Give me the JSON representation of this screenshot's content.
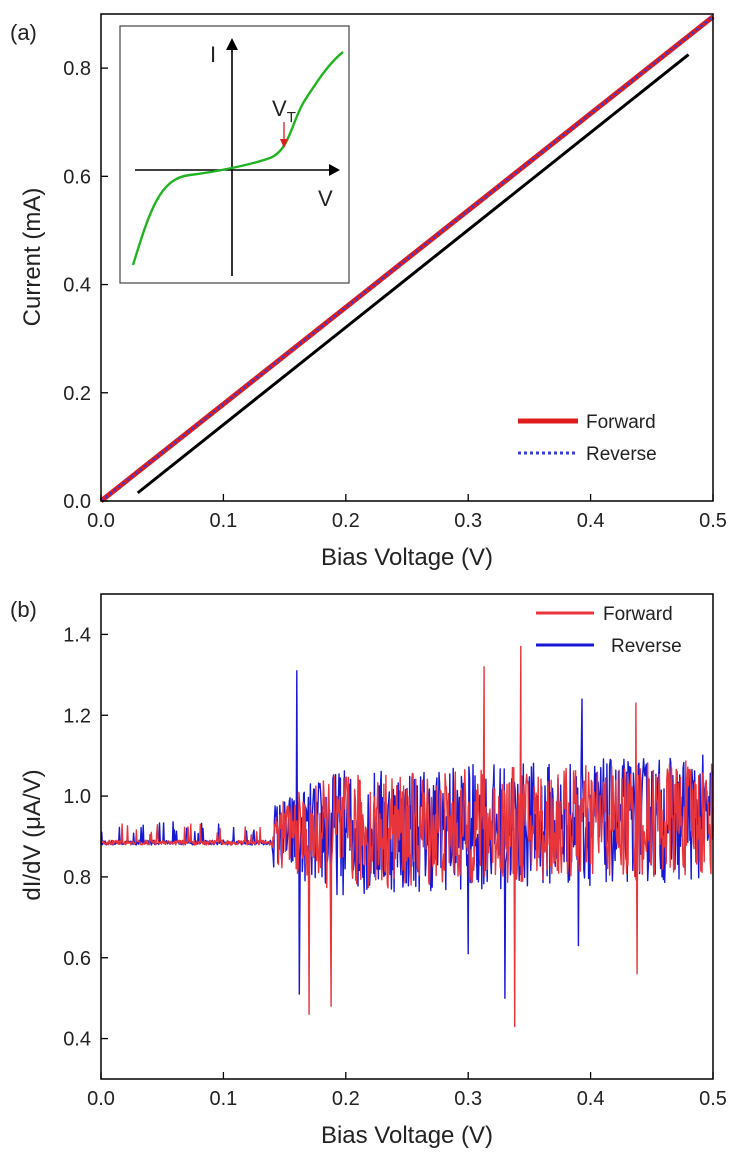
{
  "chart_data": [
    {
      "panel_label": "(a)",
      "type": "line",
      "xlabel": "Bias Voltage (V)",
      "ylabel": "Current (mA)",
      "xlim": [
        0,
        0.5
      ],
      "ylim": [
        0,
        0.9
      ],
      "xticks": [
        0.0,
        0.1,
        0.2,
        0.3,
        0.4,
        0.5
      ],
      "xtick_labels": [
        "0.0",
        "0.1",
        "0.2",
        "0.3",
        "0.4",
        "0.5"
      ],
      "yticks": [
        0.0,
        0.2,
        0.4,
        0.6,
        0.8
      ],
      "ytick_labels": [
        "0.0",
        "0.2",
        "0.4",
        "0.6",
        "0.8"
      ],
      "legend_position": "bottom-right",
      "series": [
        {
          "name": "Forward",
          "color": "#e01b1b",
          "style": "solid",
          "x": [
            0.0,
            0.5
          ],
          "y": [
            0.0,
            0.895
          ]
        },
        {
          "name": "Reverse",
          "color": "#3a3ad8",
          "style": "dotted",
          "x": [
            0.0,
            0.5
          ],
          "y": [
            0.0,
            0.895
          ]
        },
        {
          "color": "#000000",
          "style": "solid",
          "x": [
            0.03,
            0.48
          ],
          "y": [
            0.015,
            0.825
          ]
        }
      ],
      "inset": {
        "y_axis_label": "I",
        "x_axis_label": "V",
        "annotation": "V",
        "annotation_sub": "T",
        "curve_color": "#22b322",
        "arrow_color": "#e01b1b"
      }
    },
    {
      "panel_label": "(b)",
      "type": "line",
      "xlabel": "Bias Voltage (V)",
      "ylabel": "dI/dV (μA/V)",
      "xlim": [
        0,
        0.5
      ],
      "ylim": [
        0.3,
        1.5
      ],
      "xticks": [
        0.0,
        0.1,
        0.2,
        0.3,
        0.4,
        0.5
      ],
      "xtick_labels": [
        "0.0",
        "0.1",
        "0.2",
        "0.3",
        "0.4",
        "0.5"
      ],
      "yticks": [
        0.4,
        0.6,
        0.8,
        1.0,
        1.2,
        1.4
      ],
      "ytick_labels": [
        "0.4",
        "0.6",
        "0.8",
        "1.0",
        "1.2",
        "1.4"
      ],
      "legend_position": "top-right",
      "baseline_value": 0.885,
      "noise_onset_voltage": 0.14,
      "series": [
        {
          "name": "Forward",
          "color": "#e8353b",
          "spikes": [
            [
              0.17,
              0.46
            ],
            [
              0.188,
              0.48
            ],
            [
              0.313,
              1.32
            ],
            [
              0.338,
              0.43
            ],
            [
              0.343,
              1.37
            ],
            [
              0.437,
              1.23
            ],
            [
              0.438,
              0.56
            ]
          ]
        },
        {
          "name": "Reverse",
          "color": "#1717d6",
          "spikes": [
            [
              0.16,
              1.31
            ],
            [
              0.162,
              0.51
            ],
            [
              0.3,
              0.61
            ],
            [
              0.33,
              0.5
            ],
            [
              0.39,
              0.63
            ],
            [
              0.393,
              1.24
            ]
          ]
        }
      ]
    }
  ]
}
